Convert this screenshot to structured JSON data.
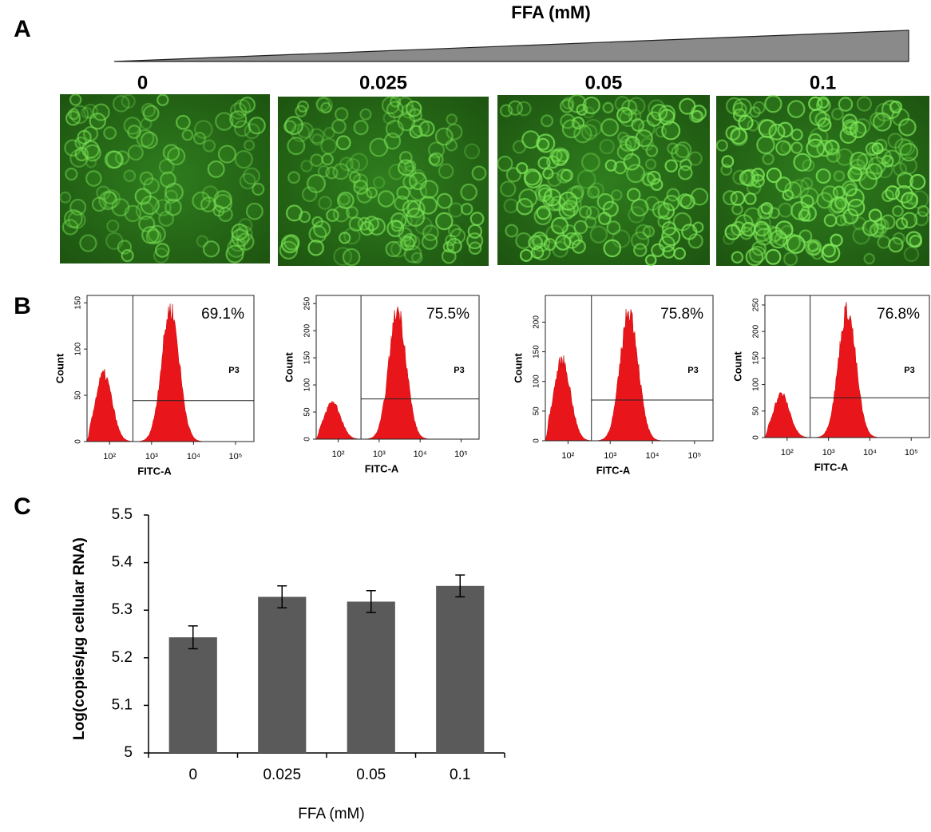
{
  "panel_a": {
    "label": "A",
    "title": "FFA (mM)",
    "concentrations": [
      "0",
      "0.025",
      "0.05",
      "0.1"
    ]
  },
  "panel_b": {
    "label": "B",
    "gate": "P3",
    "x_label": "FITC-A",
    "y_label": "Count",
    "x_log": true,
    "xlim": [
      29,
      275000
    ],
    "xticks": [
      {
        "value": 100,
        "label": "10²"
      },
      {
        "value": 1000,
        "label": "10³"
      },
      {
        "value": 10000,
        "label": "10⁴"
      },
      {
        "value": 100000,
        "label": "10⁵"
      }
    ],
    "plots": [
      {
        "percent": "69.1%",
        "ylim": [
          0,
          158
        ],
        "yticks": [
          0,
          50,
          100,
          150
        ]
      },
      {
        "percent": "75.5%",
        "ylim": [
          0,
          265
        ],
        "yticks": [
          0,
          50,
          100,
          150,
          200,
          250
        ]
      },
      {
        "percent": "75.8%",
        "ylim": [
          0,
          245
        ],
        "yticks": [
          0,
          50,
          100,
          150,
          200
        ]
      },
      {
        "percent": "76.8%",
        "ylim": [
          0,
          268
        ],
        "yticks": [
          0,
          50,
          100,
          150,
          200,
          250
        ]
      }
    ]
  },
  "panel_c_label": "C",
  "chart_data": {
    "type": "bar",
    "y_label": "Log(copies/µg cellular RNA)",
    "x_label": "FFA (mM)",
    "categories": [
      "0",
      "0.025",
      "0.05",
      "0.1"
    ],
    "values": [
      5.243,
      5.328,
      5.318,
      5.351
    ],
    "errors": [
      0.024,
      0.023,
      0.023,
      0.023
    ],
    "color": "#5a5a5a",
    "ylim": [
      5,
      5.5
    ],
    "yticks": [
      5,
      5.1,
      5.2,
      5.3,
      5.4,
      5.5
    ]
  }
}
